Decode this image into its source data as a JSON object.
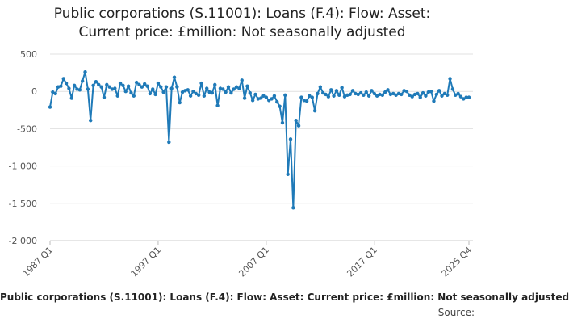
{
  "chart_data": {
    "type": "line",
    "title_lines": [
      "Public corporations (S.11001): Loans (F.4): Flow: Asset:",
      "Current price: £million: Not seasonally adjusted"
    ],
    "x_tick_labels": [
      "1987 Q1",
      "1997 Q1",
      "2007 Q1",
      "2017 Q1",
      "2025 Q4"
    ],
    "y_ticks": [
      500,
      0,
      -500,
      -1000,
      -1500,
      -2000
    ],
    "y_tick_labels": [
      "500",
      "0",
      "-500",
      "-1 000",
      "-1 500",
      "-2 000"
    ],
    "ylim": [
      -2000,
      500
    ],
    "grid": true,
    "series": [
      {
        "name": "Public corporations (S.11001): Loans (F.4): Flow: Asset: Current price: £million: Not seasonally adjusted",
        "color": "#1f7ab8",
        "points": [
          [
            "1987 Q1",
            -210
          ],
          [
            "1987 Q2",
            -10
          ],
          [
            "1987 Q3",
            -30
          ],
          [
            "1987 Q4",
            60
          ],
          [
            "1988 Q1",
            70
          ],
          [
            "1988 Q2",
            170
          ],
          [
            "1988 Q3",
            110
          ],
          [
            "1988 Q4",
            40
          ],
          [
            "1989 Q1",
            -90
          ],
          [
            "1989 Q2",
            80
          ],
          [
            "1989 Q3",
            30
          ],
          [
            "1989 Q4",
            20
          ],
          [
            "1990 Q1",
            140
          ],
          [
            "1990 Q2",
            260
          ],
          [
            "1990 Q3",
            30
          ],
          [
            "1990 Q4",
            -390
          ],
          [
            "1991 Q1",
            80
          ],
          [
            "1991 Q2",
            130
          ],
          [
            "1991 Q3",
            90
          ],
          [
            "1991 Q4",
            60
          ],
          [
            "1992 Q1",
            -80
          ],
          [
            "1992 Q2",
            90
          ],
          [
            "1992 Q3",
            60
          ],
          [
            "1992 Q4",
            30
          ],
          [
            "1993 Q1",
            40
          ],
          [
            "1993 Q2",
            -60
          ],
          [
            "1993 Q3",
            110
          ],
          [
            "1993 Q4",
            80
          ],
          [
            "1994 Q1",
            0
          ],
          [
            "1994 Q2",
            70
          ],
          [
            "1994 Q3",
            -20
          ],
          [
            "1994 Q4",
            -60
          ],
          [
            "1995 Q1",
            120
          ],
          [
            "1995 Q2",
            90
          ],
          [
            "1995 Q3",
            60
          ],
          [
            "1995 Q4",
            100
          ],
          [
            "1996 Q1",
            70
          ],
          [
            "1996 Q2",
            -30
          ],
          [
            "1996 Q3",
            30
          ],
          [
            "1996 Q4",
            -40
          ],
          [
            "1997 Q1",
            110
          ],
          [
            "1997 Q2",
            60
          ],
          [
            "1997 Q3",
            -10
          ],
          [
            "1997 Q4",
            60
          ],
          [
            "1998 Q1",
            -680
          ],
          [
            "1998 Q2",
            40
          ],
          [
            "1998 Q3",
            190
          ],
          [
            "1998 Q4",
            60
          ],
          [
            "1999 Q1",
            -150
          ],
          [
            "1999 Q2",
            -10
          ],
          [
            "1999 Q3",
            10
          ],
          [
            "1999 Q4",
            20
          ],
          [
            "2000 Q1",
            -60
          ],
          [
            "2000 Q2",
            0
          ],
          [
            "2000 Q3",
            -30
          ],
          [
            "2000 Q4",
            -50
          ],
          [
            "2001 Q1",
            110
          ],
          [
            "2001 Q2",
            -60
          ],
          [
            "2001 Q3",
            40
          ],
          [
            "2001 Q4",
            -10
          ],
          [
            "2002 Q1",
            -20
          ],
          [
            "2002 Q2",
            90
          ],
          [
            "2002 Q3",
            -190
          ],
          [
            "2002 Q4",
            40
          ],
          [
            "2003 Q1",
            30
          ],
          [
            "2003 Q2",
            -10
          ],
          [
            "2003 Q3",
            60
          ],
          [
            "2003 Q4",
            -20
          ],
          [
            "2004 Q1",
            30
          ],
          [
            "2004 Q2",
            60
          ],
          [
            "2004 Q3",
            40
          ],
          [
            "2004 Q4",
            150
          ],
          [
            "2005 Q1",
            -90
          ],
          [
            "2005 Q2",
            70
          ],
          [
            "2005 Q3",
            -20
          ],
          [
            "2005 Q4",
            -120
          ],
          [
            "2006 Q1",
            -40
          ],
          [
            "2006 Q2",
            -100
          ],
          [
            "2006 Q3",
            -90
          ],
          [
            "2006 Q4",
            -60
          ],
          [
            "2007 Q1",
            -80
          ],
          [
            "2007 Q2",
            -120
          ],
          [
            "2007 Q3",
            -100
          ],
          [
            "2007 Q4",
            -60
          ],
          [
            "2008 Q1",
            -140
          ],
          [
            "2008 Q2",
            -200
          ],
          [
            "2008 Q3",
            -420
          ],
          [
            "2008 Q4",
            -50
          ],
          [
            "2009 Q1",
            -1110
          ],
          [
            "2009 Q2",
            -640
          ],
          [
            "2009 Q3",
            -1560
          ],
          [
            "2009 Q4",
            -390
          ],
          [
            "2010 Q1",
            -460
          ],
          [
            "2010 Q2",
            -80
          ],
          [
            "2010 Q3",
            -120
          ],
          [
            "2010 Q4",
            -130
          ],
          [
            "2011 Q1",
            -60
          ],
          [
            "2011 Q2",
            -80
          ],
          [
            "2011 Q3",
            -260
          ],
          [
            "2011 Q4",
            -30
          ],
          [
            "2012 Q1",
            60
          ],
          [
            "2012 Q2",
            -20
          ],
          [
            "2012 Q3",
            -40
          ],
          [
            "2012 Q4",
            -70
          ],
          [
            "2013 Q1",
            20
          ],
          [
            "2013 Q2",
            -60
          ],
          [
            "2013 Q3",
            10
          ],
          [
            "2013 Q4",
            -50
          ],
          [
            "2014 Q1",
            50
          ],
          [
            "2014 Q2",
            -70
          ],
          [
            "2014 Q3",
            -50
          ],
          [
            "2014 Q4",
            -40
          ],
          [
            "2015 Q1",
            10
          ],
          [
            "2015 Q2",
            -30
          ],
          [
            "2015 Q3",
            -40
          ],
          [
            "2015 Q4",
            -20
          ],
          [
            "2016 Q1",
            -50
          ],
          [
            "2016 Q2",
            -10
          ],
          [
            "2016 Q3",
            -60
          ],
          [
            "2016 Q4",
            10
          ],
          [
            "2017 Q1",
            -30
          ],
          [
            "2017 Q2",
            -60
          ],
          [
            "2017 Q3",
            -40
          ],
          [
            "2017 Q4",
            -50
          ],
          [
            "2018 Q1",
            -10
          ],
          [
            "2018 Q2",
            20
          ],
          [
            "2018 Q3",
            -40
          ],
          [
            "2018 Q4",
            -30
          ],
          [
            "2019 Q1",
            -50
          ],
          [
            "2019 Q2",
            -30
          ],
          [
            "2019 Q3",
            -40
          ],
          [
            "2019 Q4",
            10
          ],
          [
            "2020 Q1",
            0
          ],
          [
            "2020 Q2",
            -50
          ],
          [
            "2020 Q3",
            -70
          ],
          [
            "2020 Q4",
            -40
          ],
          [
            "2021 Q1",
            -30
          ],
          [
            "2021 Q2",
            -80
          ],
          [
            "2021 Q3",
            -20
          ],
          [
            "2021 Q4",
            -60
          ],
          [
            "2022 Q1",
            -10
          ],
          [
            "2022 Q2",
            0
          ],
          [
            "2022 Q3",
            -130
          ],
          [
            "2022 Q4",
            -40
          ],
          [
            "2023 Q1",
            10
          ],
          [
            "2023 Q2",
            -60
          ],
          [
            "2023 Q3",
            -30
          ],
          [
            "2023 Q4",
            -50
          ],
          [
            "2024 Q1",
            170
          ],
          [
            "2024 Q2",
            30
          ],
          [
            "2024 Q3",
            -50
          ],
          [
            "2024 Q4",
            -30
          ],
          [
            "2025 Q1",
            -70
          ],
          [
            "2025 Q2",
            -100
          ],
          [
            "2025 Q3",
            -80
          ],
          [
            "2025 Q4",
            -80
          ]
        ]
      }
    ]
  },
  "caption": "Public corporations (S.11001): Loans (F.4): Flow: Asset: Current price: £million: Not seasonally adjusted",
  "source_label": "Source:"
}
